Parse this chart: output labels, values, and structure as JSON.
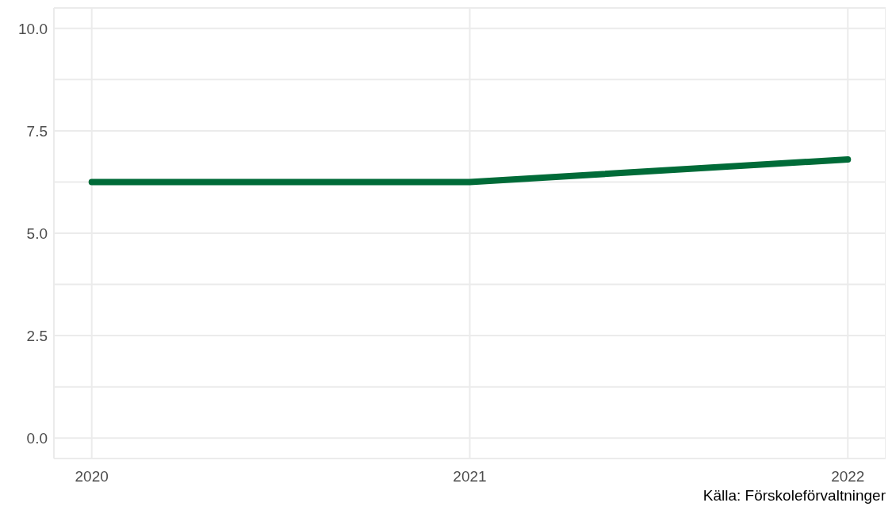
{
  "chart_data": {
    "type": "line",
    "x": [
      2020,
      2021,
      2022
    ],
    "series": [
      {
        "color": "#006b38",
        "values": [
          6.25,
          6.25,
          6.8
        ]
      }
    ],
    "xlim": [
      2019.9,
      2022.1
    ],
    "xticks": [
      2020,
      2021,
      2022
    ],
    "ylim": [
      -0.5,
      10.5
    ],
    "yticks": [
      {
        "value": 0,
        "label": "0.0"
      },
      {
        "value": 1.25,
        "label": null
      },
      {
        "value": 2.5,
        "label": "2.5"
      },
      {
        "value": 3.75,
        "label": null
      },
      {
        "value": 5,
        "label": "5.0"
      },
      {
        "value": 6.25,
        "label": null
      },
      {
        "value": 7.5,
        "label": "7.5"
      },
      {
        "value": 8.75,
        "label": null
      },
      {
        "value": 10,
        "label": "10.0"
      }
    ],
    "grid": true,
    "annotations": [
      "Källa: Förskoleförvaltninger"
    ]
  }
}
